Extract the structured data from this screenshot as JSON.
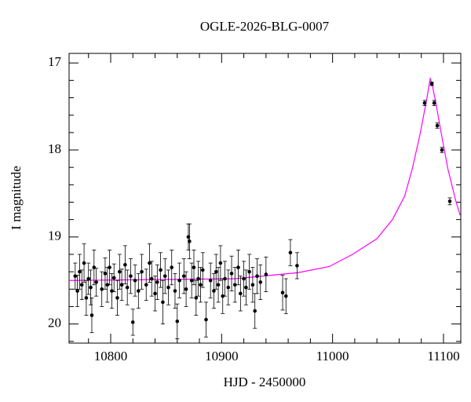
{
  "chart_data": {
    "type": "scatter",
    "title": "OGLE-2026-BLG-0007",
    "x_label": "HJD - 2450000",
    "y_label": "I magnitude",
    "xlim": [
      10762.5,
      11115.6
    ],
    "ylim": [
      20.22,
      16.89
    ],
    "xticks": [
      10800,
      10900,
      11000,
      11100
    ],
    "yticks": [
      17,
      18,
      19,
      20
    ],
    "xminorticks": [
      10780,
      10820,
      10840,
      10860,
      10880,
      10920,
      10940,
      10960,
      10980,
      11020,
      11040,
      11060,
      11080
    ],
    "yminorticks": [
      17.2,
      17.4,
      17.6,
      17.8,
      18.2,
      18.4,
      18.6,
      18.8,
      19.2,
      19.4,
      19.6,
      19.8,
      20.2
    ],
    "points": {
      "color": "#000000",
      "x": [
        10768,
        10770,
        10772,
        10774,
        10776,
        10778,
        10780,
        10782,
        10783,
        10785,
        10787,
        10792,
        10795,
        10797,
        10799,
        10801,
        10803,
        10806,
        10808,
        10810,
        10813,
        10815,
        10818,
        10820,
        10822,
        10825,
        10828,
        10832,
        10835,
        10837,
        10840,
        10842,
        10845,
        10847,
        10849,
        10852,
        10855,
        10858,
        10860,
        10862,
        10866,
        10868,
        10870,
        10871,
        10873,
        10875,
        10877,
        10879,
        10881,
        10883,
        10886,
        10890,
        10893,
        10895,
        10897,
        10899,
        10901,
        10903,
        10906,
        10909,
        10912,
        10915,
        10917,
        10920,
        10922,
        10925,
        10928,
        10930,
        10932,
        10935,
        10940,
        10955,
        10958,
        10962,
        10968,
        11083,
        11089.5,
        11091.6,
        11094.4,
        11098.6,
        11105.7
      ],
      "values": [
        19.45,
        19.62,
        19.4,
        19.55,
        19.3,
        19.7,
        19.48,
        19.58,
        19.9,
        19.35,
        19.52,
        19.6,
        19.42,
        19.55,
        19.35,
        19.62,
        19.47,
        19.7,
        19.4,
        19.55,
        19.32,
        19.58,
        19.45,
        19.98,
        19.5,
        19.62,
        19.4,
        19.55,
        19.3,
        19.48,
        19.65,
        19.52,
        19.38,
        19.75,
        19.45,
        19.58,
        19.35,
        19.62,
        19.97,
        19.5,
        19.45,
        19.6,
        19.0,
        19.05,
        19.5,
        19.35,
        19.7,
        19.48,
        19.55,
        19.38,
        19.95,
        19.5,
        19.62,
        19.4,
        19.55,
        19.3,
        19.68,
        19.48,
        19.58,
        19.42,
        19.55,
        19.35,
        19.65,
        19.48,
        19.58,
        19.4,
        19.55,
        19.85,
        19.45,
        19.52,
        19.43,
        19.64,
        19.68,
        19.18,
        19.33,
        17.46,
        17.24,
        17.46,
        17.72,
        18.0,
        18.59
      ],
      "errors": [
        0.15,
        0.18,
        0.2,
        0.17,
        0.22,
        0.2,
        0.18,
        0.2,
        0.2,
        0.2,
        0.16,
        0.2,
        0.18,
        0.2,
        0.2,
        0.2,
        0.16,
        0.2,
        0.2,
        0.18,
        0.22,
        0.2,
        0.2,
        0.15,
        0.18,
        0.2,
        0.2,
        0.18,
        0.22,
        0.2,
        0.2,
        0.2,
        0.2,
        0.25,
        0.2,
        0.2,
        0.2,
        0.2,
        0.2,
        0.2,
        0.2,
        0.2,
        0.15,
        0.2,
        0.2,
        0.2,
        0.2,
        0.2,
        0.2,
        0.2,
        0.2,
        0.2,
        0.2,
        0.2,
        0.2,
        0.2,
        0.2,
        0.2,
        0.2,
        0.2,
        0.2,
        0.2,
        0.2,
        0.2,
        0.2,
        0.2,
        0.2,
        0.2,
        0.2,
        0.2,
        0.2,
        0.2,
        0.2,
        0.15,
        0.15,
        0.03,
        0.02,
        0.03,
        0.03,
        0.03,
        0.04
      ]
    },
    "model": {
      "color": "#ff00ff",
      "x": [
        10762.5,
        10912.5,
        10969,
        10997,
        11018,
        11040,
        11054,
        11065,
        11072,
        11079,
        11085,
        11088,
        11089.5,
        11093,
        11098,
        11104,
        11111,
        11115
      ],
      "values": [
        19.5,
        19.48,
        19.41,
        19.34,
        19.2,
        19.02,
        18.8,
        18.53,
        18.21,
        17.81,
        17.41,
        17.18,
        17.23,
        17.45,
        17.81,
        18.22,
        18.58,
        18.75
      ]
    }
  }
}
